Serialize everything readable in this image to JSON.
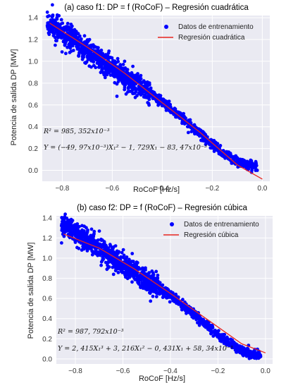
{
  "chart_data": [
    {
      "type": "scatter",
      "title": "(a) caso f1: DP = f (RoCoF) – Regresión cuadrática",
      "xlabel": "RoCoF [Hz/s]",
      "ylabel": "Potencia de salida DP [MW]",
      "xlim": [
        -0.88,
        0.03
      ],
      "ylim": [
        -0.1,
        1.42
      ],
      "xticks": [
        -0.8,
        -0.6,
        -0.4,
        -0.2,
        0.0
      ],
      "xtick_labels": [
        "−0.8",
        "−0.6",
        "−0.4",
        "−0.2",
        "0.0"
      ],
      "yticks": [
        0.0,
        0.2,
        0.4,
        0.6,
        0.8,
        1.0,
        1.2,
        1.4
      ],
      "ytick_labels": [
        "0.0",
        "0.2",
        "0.4",
        "0.6",
        "0.8",
        "1.0",
        "1.2",
        "1.4"
      ],
      "grid": true,
      "legend_position": "top-right",
      "series": [
        {
          "name": "Datos de entrenamiento",
          "kind": "scatter",
          "color": "#0000ff",
          "approx_points": [
            [
              -0.84,
              1.33
            ],
            [
              -0.8,
              1.25
            ],
            [
              -0.75,
              1.18
            ],
            [
              -0.7,
              1.1
            ],
            [
              -0.65,
              1.02
            ],
            [
              -0.6,
              0.94
            ],
            [
              -0.55,
              0.86
            ],
            [
              -0.5,
              0.78
            ],
            [
              -0.45,
              0.71
            ],
            [
              -0.4,
              0.63
            ],
            [
              -0.35,
              0.54
            ],
            [
              -0.3,
              0.44
            ],
            [
              -0.25,
              0.34
            ],
            [
              -0.2,
              0.24
            ],
            [
              -0.15,
              0.15
            ],
            [
              -0.1,
              0.08
            ],
            [
              -0.05,
              0.04
            ]
          ]
        },
        {
          "name": "Regresión cuadrática",
          "kind": "line",
          "color": "#e8261f",
          "x": [
            -0.85,
            -0.7,
            -0.55,
            -0.4,
            -0.25,
            -0.1,
            0.0
          ],
          "y": [
            1.35,
            1.13,
            0.89,
            0.62,
            0.35,
            0.05,
            -0.08
          ]
        }
      ],
      "annotations": [
        {
          "id": "r2",
          "text": "R² = 985, 352x10⁻³"
        },
        {
          "id": "eq",
          "text": "Y = (−49, 97x10⁻³)X₁² − 1, 729X₁ − 83, 47x10⁻³"
        }
      ]
    },
    {
      "type": "scatter",
      "title": "(b) caso f2: DP = f (RoCoF) – Regresión cúbica",
      "xlabel": "RoCoF [Hz/s]",
      "ylabel": "Potencia de salida DP [MW]",
      "xlim": [
        -0.88,
        0.03
      ],
      "ylim": [
        -0.05,
        1.42
      ],
      "xticks": [
        -0.8,
        -0.6,
        -0.4,
        -0.2,
        0.0
      ],
      "xtick_labels": [
        "−0.8",
        "−0.6",
        "−0.4",
        "−0.2",
        "0.0"
      ],
      "yticks": [
        0.0,
        0.2,
        0.4,
        0.6,
        0.8,
        1.0,
        1.2,
        1.4
      ],
      "ytick_labels": [
        "0.0",
        "0.2",
        "0.4",
        "0.6",
        "0.8",
        "1.0",
        "1.2",
        "1.4"
      ],
      "grid": true,
      "legend_position": "top-right",
      "series": [
        {
          "name": "Datos de entrenamiento",
          "kind": "scatter",
          "color": "#0000ff",
          "approx_points": [
            [
              -0.84,
              1.33
            ],
            [
              -0.8,
              1.25
            ],
            [
              -0.75,
              1.18
            ],
            [
              -0.7,
              1.1
            ],
            [
              -0.65,
              1.02
            ],
            [
              -0.6,
              0.94
            ],
            [
              -0.55,
              0.86
            ],
            [
              -0.5,
              0.78
            ],
            [
              -0.45,
              0.71
            ],
            [
              -0.4,
              0.63
            ],
            [
              -0.35,
              0.54
            ],
            [
              -0.3,
              0.44
            ],
            [
              -0.25,
              0.34
            ],
            [
              -0.2,
              0.24
            ],
            [
              -0.15,
              0.15
            ],
            [
              -0.1,
              0.08
            ],
            [
              -0.05,
              0.04
            ]
          ]
        },
        {
          "name": "Regresión cúbica",
          "kind": "line",
          "color": "#e8261f",
          "x": [
            -0.85,
            -0.7,
            -0.55,
            -0.4,
            -0.25,
            -0.1,
            0.0
          ],
          "y": [
            1.24,
            1.1,
            0.89,
            0.65,
            0.4,
            0.15,
            0.06
          ]
        }
      ],
      "annotations": [
        {
          "id": "r2",
          "text": "R² = 987, 792x10⁻³"
        },
        {
          "id": "eq",
          "text": "Y = 2, 415X₁³ + 3, 216X₁² − 0, 431X₁ + 58, 34x10⁻³"
        }
      ]
    }
  ]
}
